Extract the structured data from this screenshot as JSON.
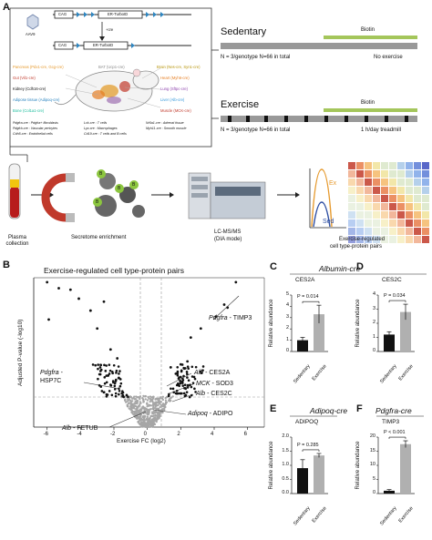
{
  "panelA": {
    "letter": "A",
    "construct": {
      "aav": "AAV9",
      "cag": "CAG",
      "cag2": "CAG",
      "er_label": "ER-TurboID",
      "er_label2": "ER-TurboID",
      "cre": "+cre"
    },
    "tissues": [
      {
        "text": "Pancreas (Pdx1-cre, Gcg-cre)",
        "color": "#e69a2e"
      },
      {
        "text": "Gut (Vil1-cre)",
        "color": "#c0392b"
      },
      {
        "text": "Kidney (Cdh16-cre)",
        "color": "#111111"
      },
      {
        "text": "Adipose tissue (Adipoq-cre)",
        "color": "#2e86c1"
      },
      {
        "text": "Bone (Col1a1-cre)",
        "color": "#1abc9c"
      },
      {
        "text": "BAT (Ucp1-cre)",
        "color": "#888888"
      },
      {
        "text": "Brain (Nes-cre, Syn1-cre)",
        "color": "#d4ac0d"
      },
      {
        "text": "Heart (Myh6-cre)",
        "color": "#e67e22"
      },
      {
        "text": "Lung (Sftpc-cre)",
        "color": "#8e44ad"
      },
      {
        "text": "Liver (Alb-cre)",
        "color": "#3498db"
      },
      {
        "text": "Muscle (MCK-cre)",
        "color": "#c0392b"
      }
    ],
    "celltypes": [
      "Pdgfra-cre : Pdgfra+ fibroblasts",
      "Pdgfrb-cre : Vascular pericytes",
      "Cdh5-cre : Endothelial cells",
      "Lck-cre : T cells",
      "Lyz-cre : Macrophages",
      "Cd19-cre : T cells and B cells",
      "Nr5a1-cre : Adrenal tissue",
      "Myh11-cre : Smooth muscle"
    ],
    "sedentary": {
      "title": "Sedentary",
      "biotin": "Biotin",
      "n_text": "N = 3/genotype N=66 in total",
      "note": "No exercise"
    },
    "exercise": {
      "title": "Exercise",
      "biotin": "Biotin",
      "n_text": "N = 3/genotype N=66 in total",
      "note": "1 h/day treadmill"
    },
    "workflow": {
      "plasma": "Plasma collection",
      "secretome": "Secretome enrichment",
      "lcms1": "LC-MS/MS",
      "lcms2": "(DIA mode)",
      "pairs1": "Exercise-regulated",
      "pairs2": "cell type-protein pairs",
      "ex": "Ex",
      "sed": "Sed",
      "bead": "B"
    },
    "colors": {
      "biotin": "#a4c65b",
      "bar": "#999999",
      "ex": "#e69a2e",
      "sed": "#2e4fa3"
    }
  },
  "panelB": {
    "letter": "B",
    "title": "Exercise-regulated cell type-protein pairs",
    "xlabel": "Exercise FC (log2)",
    "ylabel": "Adjusted P-value (-log10)",
    "xticks": [
      "-6",
      "-4",
      "-2",
      "0",
      "2",
      "4",
      "6"
    ],
    "labels": [
      {
        "gene": "Pdgfra",
        "protein": " - TIMP3"
      },
      {
        "gene": "Pdgfra",
        "protein": " -"
      },
      {
        "gene": "Alb",
        "protein": " - CES2A"
      },
      {
        "gene": "MCK",
        "protein": " - SOD3"
      },
      {
        "gene": "Alb",
        "protein": " - CES2C"
      },
      {
        "gene": "Adipoq",
        "protein": " - ADIPO"
      },
      {
        "gene": "Alb",
        "protein": " - FETUB"
      }
    ],
    "hsp": "HSP7C"
  },
  "chart_data": [
    {
      "type": "scatter",
      "title": "Exercise-regulated cell type-protein pairs",
      "xlabel": "Exercise FC (log2)",
      "ylabel": "Adjusted P-value (-log10)",
      "xlim": [
        -6.8,
        7
      ],
      "ylim": [
        0,
        1
      ],
      "threshold_x": [
        -0.6,
        0.6
      ],
      "series": [
        {
          "name": "",
          "x": [
            -6.0,
            -5.3,
            -4.6,
            -4.1,
            -2.6,
            -3.4,
            4.1,
            4.6,
            5.3,
            4.8,
            -5.9,
            -3.0,
            3.2,
            2.6,
            -2.2,
            -1.8,
            2.0,
            1.4,
            1.8,
            2.4
          ],
          "y": [
            0.97,
            0.93,
            0.92,
            0.86,
            0.84,
            0.78,
            0.74,
            0.82,
            0.97,
            0.8,
            0.72,
            0.66,
            0.66,
            0.6,
            0.52,
            0.46,
            0.42,
            0.4,
            0.36,
            0.44
          ]
        }
      ]
    },
    {
      "type": "bar",
      "title": "CES2A",
      "panel": "C",
      "group_title": "Albumin-cre",
      "categories": [
        "Sedentary",
        "Exercise"
      ],
      "values": [
        1.0,
        3.3
      ],
      "errors": [
        0.25,
        0.8
      ],
      "ylabel": "Relative abundance",
      "ylim": [
        0,
        5
      ],
      "yticks": [
        0,
        1,
        2,
        3,
        4,
        5
      ],
      "pvalue": "P = 0.014"
    },
    {
      "type": "bar",
      "title": "CES2C",
      "panel": "D",
      "categories": [
        "Sedentary",
        "Exercise"
      ],
      "values": [
        1.2,
        2.8
      ],
      "errors": [
        0.2,
        0.55
      ],
      "ylabel": "Relative abundance",
      "ylim": [
        0,
        4
      ],
      "yticks": [
        0,
        1,
        2,
        3,
        4
      ],
      "pvalue": "P = 0.034"
    },
    {
      "type": "bar",
      "title": "ADIPOQ",
      "panel": "E",
      "group_title": "Adipoq-cre",
      "categories": [
        "Sedentary",
        "Exercise"
      ],
      "values": [
        0.9,
        1.35
      ],
      "errors": [
        0.3,
        0.07
      ],
      "ylabel": "Relative abundance",
      "ylim": [
        0,
        2
      ],
      "yticks": [
        "0.0",
        "0.5",
        "1.0",
        "1.5",
        "2.0"
      ],
      "pvalue": "P = 0.285"
    },
    {
      "type": "bar",
      "title": "TIMP3",
      "panel": "F",
      "group_title": "Pdgfra-cre",
      "categories": [
        "Sedentary",
        "Exercise"
      ],
      "values": [
        1.0,
        17.5
      ],
      "errors": [
        0.4,
        1.2
      ],
      "ylabel": "Relative abundance",
      "ylim": [
        0,
        20
      ],
      "yticks": [
        0,
        5,
        10,
        15,
        20
      ],
      "pvalue": "P < 0.001"
    }
  ]
}
